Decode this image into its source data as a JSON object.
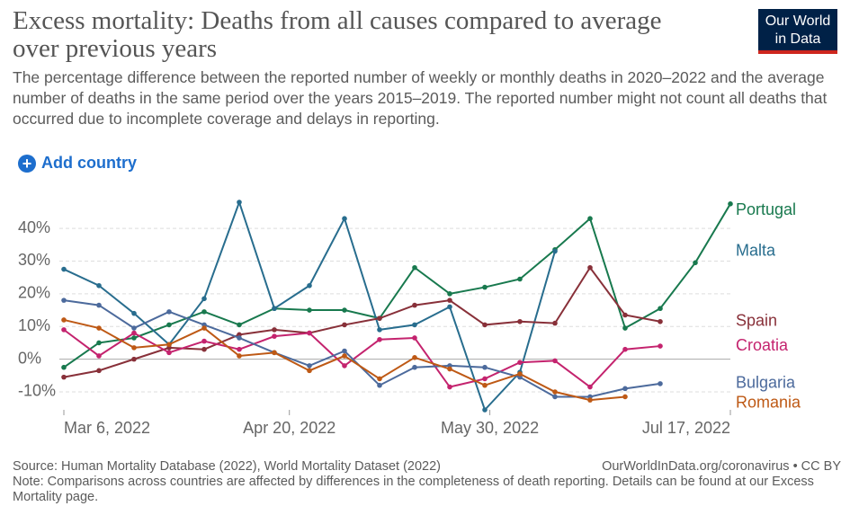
{
  "chart_data": {
    "type": "line",
    "title": "Excess mortality: Deaths from all causes compared to average over previous years",
    "subtitle": "The percentage difference between the reported number of weekly or monthly deaths in 2020–2022 and the average number of deaths in the same period over the years 2015–2019. The reported number might not count all deaths that occurred due to incomplete coverage and delays in reporting.",
    "x": [
      "2022-03-06",
      "2022-03-13",
      "2022-03-20",
      "2022-03-27",
      "2022-04-03",
      "2022-04-10",
      "2022-04-17",
      "2022-04-24",
      "2022-05-01",
      "2022-05-08",
      "2022-05-15",
      "2022-05-22",
      "2022-05-29",
      "2022-06-05",
      "2022-06-12",
      "2022-06-19",
      "2022-06-26",
      "2022-07-03",
      "2022-07-10",
      "2022-07-17"
    ],
    "xlim": [
      "2022-03-06",
      "2022-07-17"
    ],
    "xticks": [
      {
        "value": "2022-03-06",
        "label": "Mar 6, 2022"
      },
      {
        "value": "2022-04-20",
        "label": "Apr 20, 2022"
      },
      {
        "value": "2022-05-30",
        "label": "May 30, 2022"
      },
      {
        "value": "2022-07-17",
        "label": "Jul 17, 2022"
      }
    ],
    "ylim": [
      -15.5,
      48
    ],
    "yticks": [
      {
        "value": -10,
        "label": "-10%"
      },
      {
        "value": 0,
        "label": "0%"
      },
      {
        "value": 10,
        "label": "10%"
      },
      {
        "value": 20,
        "label": "20%"
      },
      {
        "value": 30,
        "label": "30%"
      },
      {
        "value": 40,
        "label": "40%"
      }
    ],
    "grid": true,
    "series": [
      {
        "name": "Portugal",
        "color": "#18794e",
        "values": [
          -2.5,
          5,
          6.5,
          10.5,
          14.5,
          10.5,
          15.5,
          15,
          15,
          12.5,
          28,
          20,
          22,
          24.5,
          33.5,
          43,
          9.5,
          15.5,
          29.5,
          47.5
        ]
      },
      {
        "name": "Malta",
        "color": "#286d8e",
        "values": [
          27.5,
          22.5,
          14,
          4.5,
          18.5,
          48,
          15.5,
          22.5,
          43,
          9,
          10.5,
          16,
          -15.5,
          -4,
          33,
          null,
          null,
          null,
          null,
          null
        ]
      },
      {
        "name": "Spain",
        "color": "#883039",
        "values": [
          -5.5,
          -3.5,
          0,
          3.5,
          3,
          7.5,
          9,
          8,
          10.5,
          12.5,
          16.5,
          18,
          10.5,
          11.5,
          11,
          28,
          13.5,
          11.5,
          null,
          null
        ]
      },
      {
        "name": "Croatia",
        "color": "#c4236e",
        "values": [
          9,
          1,
          8,
          2,
          5.5,
          3,
          7,
          8,
          -2,
          6,
          6.5,
          -8.5,
          -6,
          -1,
          -0.5,
          -8.5,
          3,
          4,
          null,
          null
        ]
      },
      {
        "name": "Bulgaria",
        "color": "#4c6a9c",
        "values": [
          18,
          16.5,
          9.5,
          14.5,
          10.5,
          6.5,
          2,
          -2,
          2.5,
          -8,
          -2.5,
          -2,
          -2.5,
          -5.5,
          -11.5,
          -11.5,
          -9,
          -7.5,
          null,
          null
        ]
      },
      {
        "name": "Romania",
        "color": "#be5915",
        "values": [
          12,
          9.5,
          3.5,
          4.5,
          9.5,
          1,
          2,
          -3.5,
          1,
          -6,
          0.5,
          -3,
          -8,
          -4.5,
          -10,
          -12.5,
          -11.5,
          null,
          null,
          null
        ]
      }
    ]
  },
  "add_button": "Add country",
  "logo": "Our World in Data",
  "source": "Source: Human Mortality Database (2022), World Mortality Dataset (2022)",
  "license": "OurWorldInData.org/coronavirus • CC BY",
  "note": "Note: Comparisons across countries are affected by differences in the completeness of death reporting. Details can be found at our Excess Mortality page."
}
